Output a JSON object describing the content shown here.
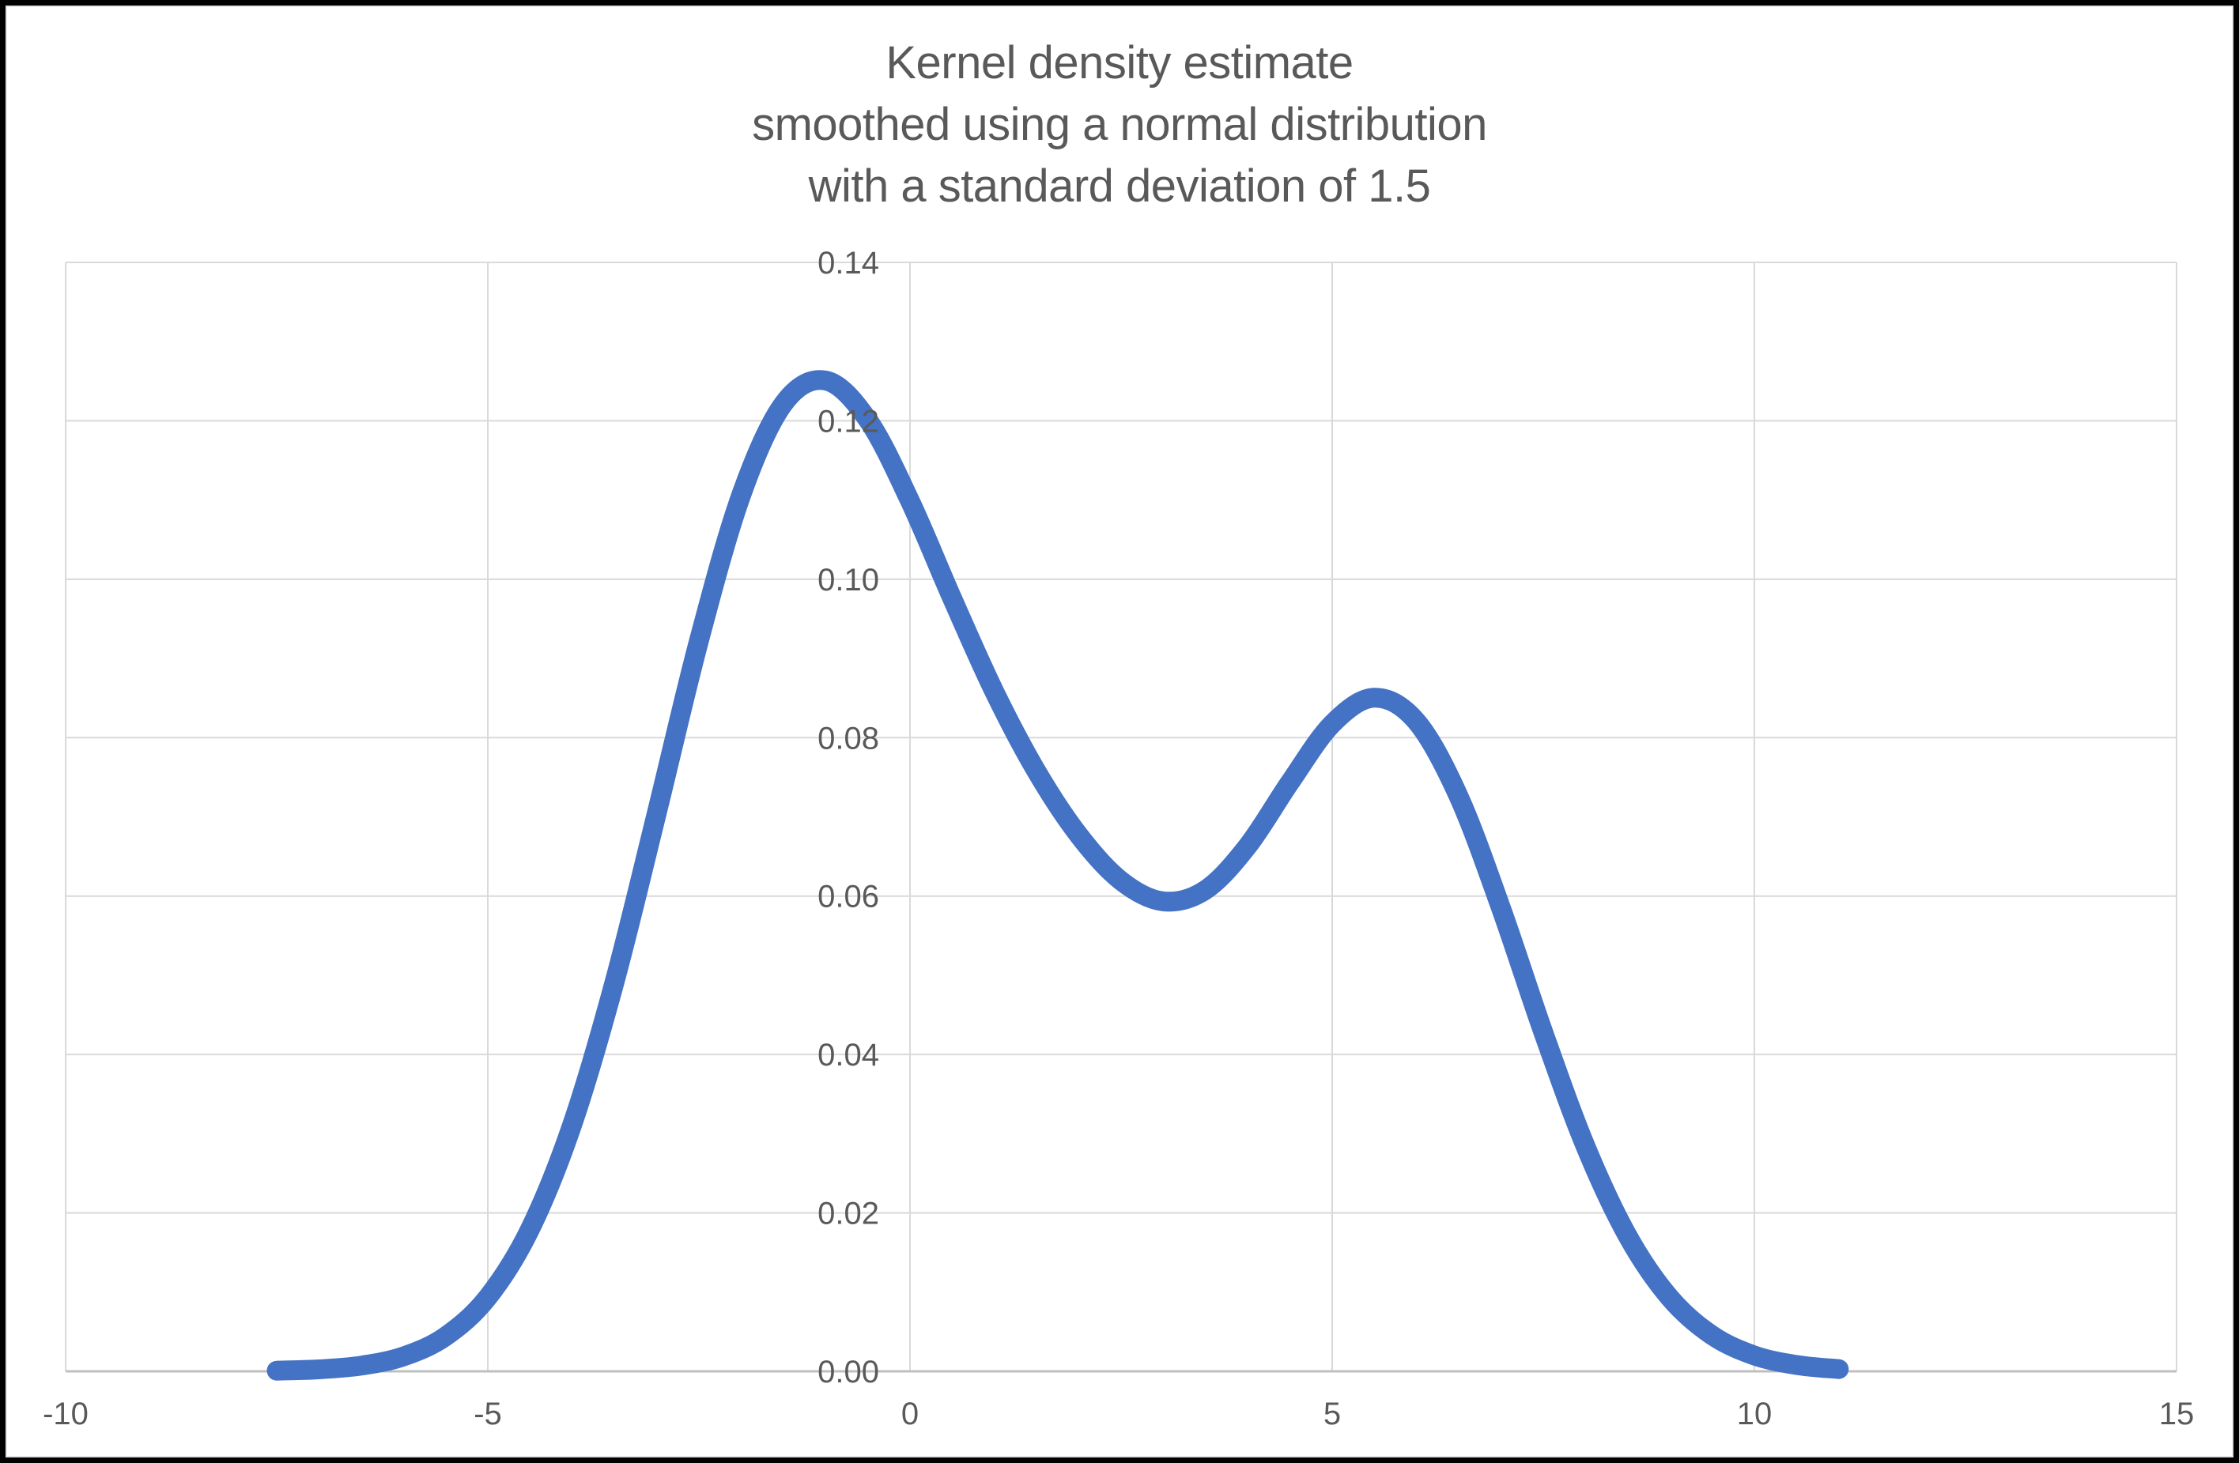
{
  "title": {
    "lines": [
      "Kernel density estimate",
      "smoothed using a normal distribution",
      "with a standard deviation of 1.5"
    ]
  },
  "colors": {
    "curve": "#4472C4",
    "gridline": "#D9D9D9",
    "axis_line": "#BFBFBF",
    "text": "#595959",
    "chart_background": "#FFFFFF",
    "outer_border": "#000000"
  },
  "chart_data": {
    "type": "line",
    "title": "Kernel density estimate smoothed using a normal distribution with a standard deviation of 1.5",
    "xlabel": "",
    "ylabel": "",
    "xlim": [
      -10,
      15
    ],
    "ylim": [
      0,
      0.14
    ],
    "x_ticks": [
      -10,
      -5,
      0,
      5,
      10,
      15
    ],
    "x_tick_labels": [
      "-10",
      "-5",
      "0",
      "5",
      "10",
      "15"
    ],
    "y_ticks": [
      0,
      0.02,
      0.04,
      0.06,
      0.08,
      0.1,
      0.12,
      0.14
    ],
    "y_tick_labels": [
      "0.00",
      "0.02",
      "0.04",
      "0.06",
      "0.08",
      "0.10",
      "0.12",
      "0.14"
    ],
    "grid": true,
    "legend": false,
    "series": [
      {
        "name": "Kernel density estimate",
        "color": "#4472C4",
        "points": [
          [
            -7.5,
            8e-05
          ],
          [
            -7.0,
            0.00025
          ],
          [
            -6.5,
            0.00072
          ],
          [
            -6.0,
            0.00188
          ],
          [
            -5.5,
            0.00441
          ],
          [
            -5.0,
            0.00935
          ],
          [
            -4.5,
            0.01794
          ],
          [
            -4.0,
            0.03115
          ],
          [
            -3.5,
            0.04911
          ],
          [
            -3.0,
            0.07043
          ],
          [
            -2.5,
            0.0922
          ],
          [
            -2.0,
            0.11059
          ],
          [
            -1.5,
            0.12213
          ],
          [
            -1.0,
            0.12509
          ],
          [
            -0.5,
            0.12014
          ],
          [
            0.0,
            0.10988
          ],
          [
            0.5,
            0.09758
          ],
          [
            1.0,
            0.08579
          ],
          [
            1.5,
            0.07572
          ],
          [
            2.0,
            0.06767
          ],
          [
            2.5,
            0.06193
          ],
          [
            3.0,
            0.05933
          ],
          [
            3.5,
            0.06078
          ],
          [
            4.0,
            0.06633
          ],
          [
            4.5,
            0.07435
          ],
          [
            5.0,
            0.08173
          ],
          [
            5.5,
            0.08504
          ],
          [
            6.0,
            0.08202
          ],
          [
            6.5,
            0.07253
          ],
          [
            7.0,
            0.05846
          ],
          [
            7.5,
            0.04282
          ],
          [
            8.0,
            0.02842
          ],
          [
            8.5,
            0.01708
          ],
          [
            9.0,
            0.00927
          ],
          [
            9.5,
            0.00454
          ],
          [
            10.0,
            0.002
          ],
          [
            10.5,
            0.0008
          ],
          [
            11.0,
            0.00028
          ]
        ]
      }
    ]
  }
}
